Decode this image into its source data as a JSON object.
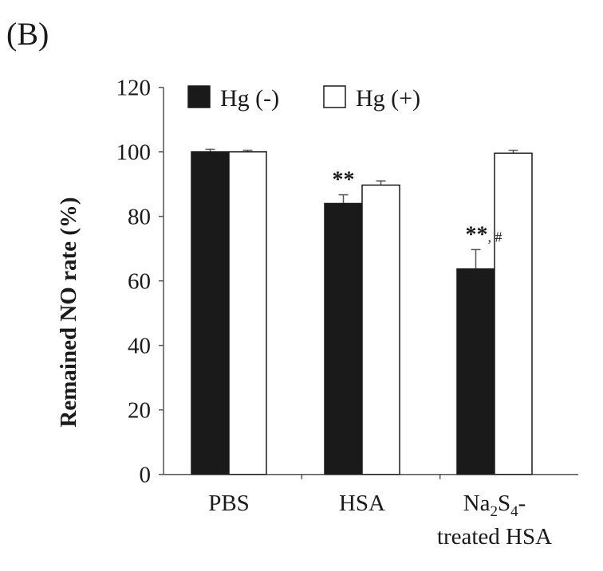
{
  "panel_label": "(B)",
  "chart_data": {
    "type": "bar",
    "title": "",
    "xlabel": "",
    "ylabel": "Remained NO rate (%)",
    "ylim": [
      0,
      120
    ],
    "yticks": [
      0,
      20,
      40,
      60,
      80,
      100,
      120
    ],
    "grid": false,
    "legend_position": "top",
    "categories": [
      {
        "line1": "PBS",
        "line2": ""
      },
      {
        "line1": "HSA",
        "line2": ""
      },
      {
        "line1": "Na2S4-",
        "line2": "treated HSA",
        "line1_parts": [
          "Na",
          "2",
          "S",
          "4",
          "-"
        ]
      }
    ],
    "series": [
      {
        "name": "Hg (-)",
        "color": "#1a1a1a",
        "values": [
          100,
          84.0,
          63.7
        ],
        "errors": [
          0.8,
          2.7,
          6.0
        ]
      },
      {
        "name": "Hg (+)",
        "color": "#ffffff",
        "values": [
          100,
          89.7,
          99.6
        ],
        "errors": [
          0.5,
          1.3,
          0.9
        ]
      }
    ],
    "annotations": [
      {
        "category": 1,
        "series": 0,
        "text": "**",
        "suffix": ""
      },
      {
        "category": 2,
        "series": 0,
        "text": "**",
        "suffix": ", #"
      }
    ]
  }
}
